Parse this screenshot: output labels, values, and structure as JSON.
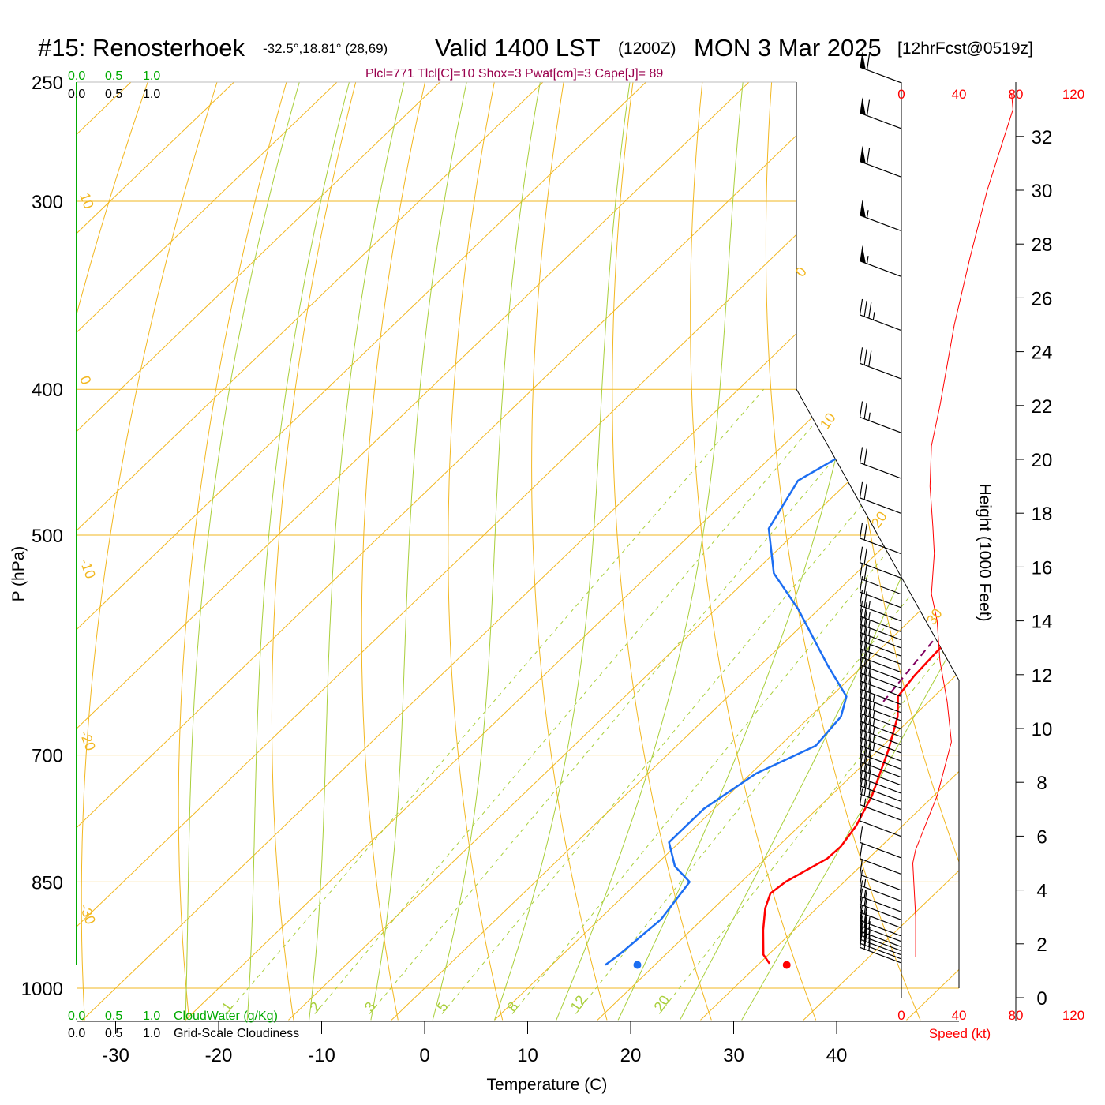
{
  "header": {
    "station": "#15: Renosterhoek",
    "coords": "-32.5°,18.81° (28,69)",
    "valid": "Valid 1400 LST",
    "zulu": "(1200Z)",
    "date": "MON 3 Mar 2025",
    "forecast": "[12hrFcst@0519z]"
  },
  "indices_text": "Plcl=771 Tlcl[C]=10 Shox=3 Pwat[cm]=3 Cape[J]= 89",
  "cloud": {
    "top_green": [
      "0.0",
      "0.5",
      "1.0"
    ],
    "top_black": [
      "0.0",
      "0.5",
      "1.0"
    ],
    "bottom_green": [
      "0.0",
      "0.5",
      "1.0"
    ],
    "bottom_black": [
      "0.0",
      "0.5",
      "1.0"
    ],
    "cloudwater_label": "CloudWater (g/Kg)",
    "cloudiness_label": "Grid-Scale Cloudiness"
  },
  "colors": {
    "temperature": "#ff0000",
    "dewpoint": "#1c6ef2",
    "isotherm": "#f2b720",
    "adiabat": "#a9cf3b",
    "mixing_ratio": "#a9cf3b",
    "parcel": "#800060",
    "speed": "#ff0000",
    "cloudwater": "#00aa00"
  },
  "chart_data": {
    "type": "line",
    "title": "#15: Renosterhoek  Valid 1400 LST (1200Z) MON 3 Mar 2025",
    "xlabel": "Temperature (C)",
    "ylabel": "P (hPa)",
    "y2label": "Height (1000 Feet)",
    "speed_label": "Speed (kt)",
    "x_ticks": [
      -30,
      -20,
      -10,
      0,
      10,
      20,
      30,
      40
    ],
    "p_ticks": [
      250,
      300,
      400,
      500,
      700,
      850,
      1000
    ],
    "height_ticks": [
      0,
      2,
      4,
      6,
      8,
      10,
      12,
      14,
      16,
      18,
      20,
      22,
      24,
      26,
      28,
      30,
      32
    ],
    "speed_ticks_top": [
      "0",
      "40",
      "80",
      "120"
    ],
    "speed_ticks_bottom": [
      "0",
      "40",
      "80",
      "120"
    ],
    "isotherm_labels": [
      "10",
      "0",
      "-10",
      "-20",
      "-30",
      "0",
      "10",
      "20",
      "30"
    ],
    "mixing_ratio_labels": [
      "1",
      "2",
      "3",
      "5",
      "8",
      "12",
      "20"
    ],
    "series": [
      {
        "name": "Temperature",
        "points": [
          [
            31,
            963
          ],
          [
            29.5,
            950
          ],
          [
            27,
            915
          ],
          [
            25,
            885
          ],
          [
            24,
            865
          ],
          [
            24.3,
            850
          ],
          [
            26,
            820
          ],
          [
            26.1,
            805
          ],
          [
            25.5,
            780
          ],
          [
            24,
            745
          ],
          [
            21,
            695
          ],
          [
            18.5,
            660
          ],
          [
            16.5,
            640
          ],
          [
            16,
            620
          ],
          [
            15.3,
            560
          ],
          [
            14,
            500
          ],
          [
            11.5,
            430
          ],
          [
            9.5,
            380
          ],
          [
            7.5,
            350
          ],
          [
            6,
            320
          ],
          [
            5.5,
            300
          ],
          [
            5,
            280
          ],
          [
            3.8,
            265
          ],
          [
            2.5,
            258
          ]
        ]
      },
      {
        "name": "Dewpoint",
        "points": [
          [
            15.2,
            965
          ],
          [
            15.5,
            950
          ],
          [
            16,
            900
          ],
          [
            15,
            850
          ],
          [
            12,
            830
          ],
          [
            9,
            800
          ],
          [
            9,
            760
          ],
          [
            10.5,
            720
          ],
          [
            13.5,
            690
          ],
          [
            13,
            660
          ],
          [
            11.5,
            640
          ],
          [
            6.5,
            610
          ],
          [
            -2,
            560
          ],
          [
            -8,
            530
          ],
          [
            -13,
            495
          ],
          [
            -15,
            460
          ],
          [
            -11,
            420
          ],
          [
            -9,
            385
          ],
          [
            -13,
            345
          ],
          [
            -13,
            300
          ],
          [
            -14.5,
            280
          ],
          [
            -14,
            265
          ],
          [
            -13.5,
            258
          ]
        ]
      },
      {
        "name": "Parcel",
        "points": [
          [
            15.6,
            645
          ],
          [
            12,
            500
          ],
          [
            8.5,
            400
          ],
          [
            6.5,
            375
          ]
        ]
      }
    ],
    "surface_markers": {
      "temperature": 32.8,
      "dewpoint": 18.3,
      "pressure": 965
    },
    "wind_speed_profile": [
      [
        10,
        1.5
      ],
      [
        10,
        3
      ],
      [
        8,
        5
      ],
      [
        10,
        5.5
      ],
      [
        25,
        7.5
      ],
      [
        35,
        9.5
      ],
      [
        32,
        11
      ],
      [
        27,
        12.5
      ],
      [
        25,
        14
      ],
      [
        21,
        15
      ],
      [
        23,
        16.5
      ],
      [
        22,
        17.5
      ],
      [
        20,
        19
      ],
      [
        21,
        20.5
      ],
      [
        27,
        22
      ],
      [
        37,
        25
      ],
      [
        48,
        27.5
      ],
      [
        60,
        30
      ],
      [
        72,
        32
      ],
      [
        78,
        33
      ],
      [
        77,
        33.6
      ]
    ],
    "wind_barbs": [
      {
        "height": 1.3,
        "speed": 25
      },
      {
        "height": 1.45,
        "speed": 25
      },
      {
        "height": 1.6,
        "speed": 25
      },
      {
        "height": 1.75,
        "speed": 25
      },
      {
        "height": 1.9,
        "speed": 25
      },
      {
        "height": 2.1,
        "speed": 25
      },
      {
        "height": 2.3,
        "speed": 25
      },
      {
        "height": 2.6,
        "speed": 20
      },
      {
        "height": 2.9,
        "speed": 20
      },
      {
        "height": 3.2,
        "speed": 15
      },
      {
        "height": 3.6,
        "speed": 15
      },
      {
        "height": 4.0,
        "speed": 10
      },
      {
        "height": 4.6,
        "speed": 10
      },
      {
        "height": 5.2,
        "speed": 10
      },
      {
        "height": 6.0,
        "speed": 5
      },
      {
        "height": 6.6,
        "speed": 15
      },
      {
        "height": 7.0,
        "speed": 25
      },
      {
        "height": 7.3,
        "speed": 25
      },
      {
        "height": 7.6,
        "speed": 30
      },
      {
        "height": 7.9,
        "speed": 30
      },
      {
        "height": 8.2,
        "speed": 30
      },
      {
        "height": 8.5,
        "speed": 30
      },
      {
        "height": 8.8,
        "speed": 35
      },
      {
        "height": 9.1,
        "speed": 35
      },
      {
        "height": 9.4,
        "speed": 35
      },
      {
        "height": 9.7,
        "speed": 35
      },
      {
        "height": 10.0,
        "speed": 35
      },
      {
        "height": 10.3,
        "speed": 35
      },
      {
        "height": 10.6,
        "speed": 35
      },
      {
        "height": 10.9,
        "speed": 30
      },
      {
        "height": 11.2,
        "speed": 30
      },
      {
        "height": 11.5,
        "speed": 30
      },
      {
        "height": 11.8,
        "speed": 25
      },
      {
        "height": 12.1,
        "speed": 25
      },
      {
        "height": 12.4,
        "speed": 25
      },
      {
        "height": 12.7,
        "speed": 25
      },
      {
        "height": 13.0,
        "speed": 25
      },
      {
        "height": 13.3,
        "speed": 25
      },
      {
        "height": 13.6,
        "speed": 25
      },
      {
        "height": 14.0,
        "speed": 25
      },
      {
        "height": 14.5,
        "speed": 20
      },
      {
        "height": 15.0,
        "speed": 20
      },
      {
        "height": 15.6,
        "speed": 20
      },
      {
        "height": 16.5,
        "speed": 20
      },
      {
        "height": 18.0,
        "speed": 20
      },
      {
        "height": 19.3,
        "speed": 20
      },
      {
        "height": 21.0,
        "speed": 25
      },
      {
        "height": 23.0,
        "speed": 30
      },
      {
        "height": 24.8,
        "speed": 35
      },
      {
        "height": 26.8,
        "speed": 55
      },
      {
        "height": 28.5,
        "speed": 55
      },
      {
        "height": 30.5,
        "speed": 60
      },
      {
        "height": 32.3,
        "speed": 60
      },
      {
        "height": 34.0,
        "speed": 60
      }
    ]
  }
}
